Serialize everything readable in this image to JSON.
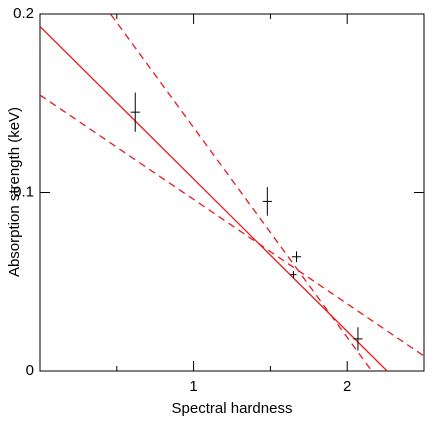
{
  "chart_data": {
    "type": "scatter",
    "xlabel": "Spectral hardness",
    "ylabel": "Absorption strength (keV)",
    "xlim": [
      0,
      2.5
    ],
    "ylim": [
      0,
      0.2
    ],
    "xticks": [
      1,
      2
    ],
    "xminorticks": [
      0.5,
      1.5
    ],
    "yticks": [
      0,
      0.1,
      0.2
    ],
    "series": [
      {
        "color": "#000000",
        "x": [
          0.62,
          1.48,
          1.67,
          1.65,
          2.07
        ],
        "values": [
          0.145,
          0.095,
          0.064,
          0.054,
          0.018
        ],
        "xerr": [
          0.03,
          0.03,
          0.03,
          0.02,
          0.03
        ],
        "yerr": [
          0.011,
          0.008,
          0.003,
          0.002,
          0.0065
        ]
      }
    ],
    "fits": [
      {
        "color": "#e8191c",
        "linestyle": "solid",
        "x": [
          0,
          2.5
        ],
        "values": [
          0.193,
          -0.0205
        ]
      },
      {
        "color": "#e8191c",
        "linestyle": "dashed",
        "x": [
          0,
          2.5
        ],
        "values": [
          0.254,
          -0.04
        ]
      },
      {
        "color": "#e8191c",
        "linestyle": "dashed",
        "x": [
          0,
          2.5
        ],
        "values": [
          0.1546,
          0.0084
        ]
      }
    ]
  }
}
